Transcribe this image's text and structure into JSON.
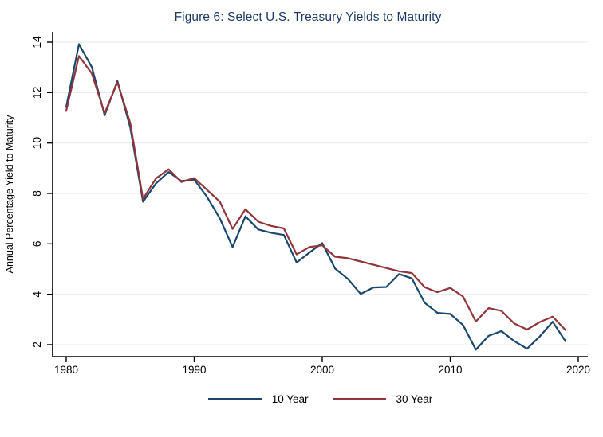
{
  "chart_data": {
    "type": "line",
    "title": "Figure 6: Select U.S. Treasury Yields to Maturity",
    "title_color": "#1c3a66",
    "xlabel": "",
    "ylabel": "Annual Percentage Yield to Maturity",
    "x": [
      1980,
      1981,
      1982,
      1983,
      1984,
      1985,
      1986,
      1987,
      1988,
      1989,
      1990,
      1991,
      1992,
      1993,
      1994,
      1995,
      1996,
      1997,
      1998,
      1999,
      2000,
      2001,
      2002,
      2003,
      2004,
      2005,
      2006,
      2007,
      2008,
      2009,
      2010,
      2011,
      2012,
      2013,
      2014,
      2015,
      2016,
      2017,
      2018,
      2019
    ],
    "series": [
      {
        "name": "10 Year",
        "color": "#1a476f",
        "values": [
          11.43,
          13.92,
          13.01,
          11.1,
          12.46,
          10.62,
          7.67,
          8.39,
          8.85,
          8.49,
          8.55,
          7.86,
          7.01,
          5.87,
          7.09,
          6.57,
          6.44,
          6.35,
          5.26,
          5.65,
          6.03,
          5.02,
          4.61,
          4.01,
          4.27,
          4.29,
          4.8,
          4.63,
          3.66,
          3.26,
          3.22,
          2.78,
          1.8,
          2.35,
          2.54,
          2.14,
          1.84,
          2.33,
          2.91,
          2.14
        ]
      },
      {
        "name": "30 Year",
        "color": "#90353b",
        "values": [
          11.27,
          13.45,
          12.76,
          11.18,
          12.41,
          10.79,
          7.78,
          8.59,
          8.96,
          8.45,
          8.61,
          8.14,
          7.67,
          6.59,
          7.37,
          6.88,
          6.71,
          6.61,
          5.58,
          5.87,
          5.94,
          5.49,
          5.43,
          5.3,
          5.17,
          5.04,
          4.91,
          4.84,
          4.28,
          4.08,
          4.25,
          3.91,
          2.92,
          3.45,
          3.34,
          2.84,
          2.6,
          2.9,
          3.11,
          2.58
        ]
      }
    ],
    "xticks": [
      1980,
      1990,
      2000,
      2010,
      2020
    ],
    "yticks": [
      2,
      4,
      6,
      8,
      10,
      12,
      14
    ],
    "xlim": [
      1978.9,
      2020.75
    ],
    "ylim": [
      1.5,
      14.4
    ],
    "grid": true,
    "gridline_color": "#e4eaf0",
    "axis_color": "#000000",
    "background": "#ffffff",
    "legend_position": "bottom-center"
  }
}
